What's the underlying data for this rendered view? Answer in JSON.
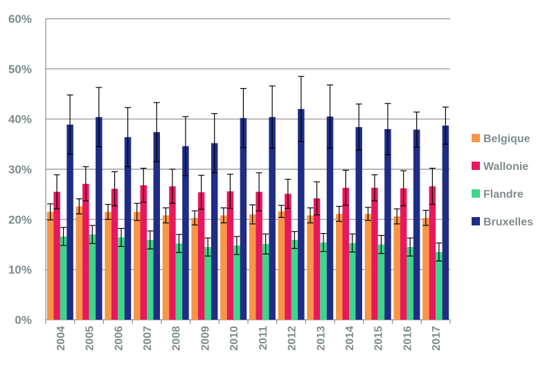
{
  "chart_data": {
    "type": "bar",
    "categories": [
      "2004",
      "2005",
      "2006",
      "2007",
      "2008",
      "2009",
      "2010",
      "2011",
      "2012",
      "2013",
      "2014",
      "2015",
      "2016",
      "2017"
    ],
    "ylim": [
      0,
      60
    ],
    "y_ticks": [
      0,
      10,
      20,
      30,
      40,
      50,
      60
    ],
    "y_tick_labels": [
      "0%",
      "10%",
      "20%",
      "30%",
      "40%",
      "50%",
      "60%"
    ],
    "grid": "horizontal",
    "legend_position": "right",
    "series": [
      {
        "name": "Belgique",
        "color": "#f79646",
        "values": [
          21.5,
          22.6,
          21.5,
          21.5,
          20.8,
          20.3,
          20.8,
          21.0,
          21.6,
          20.8,
          21.1,
          21.1,
          20.6,
          20.3
        ],
        "errors": [
          1.6,
          1.5,
          1.5,
          1.7,
          1.5,
          1.4,
          1.5,
          1.9,
          1.2,
          1.5,
          1.5,
          1.3,
          1.5,
          1.5
        ]
      },
      {
        "name": "Wallonie",
        "color": "#e8185c",
        "values": [
          25.5,
          27.1,
          26.1,
          26.8,
          26.6,
          25.4,
          25.6,
          25.5,
          25.1,
          24.2,
          26.3,
          26.3,
          26.2,
          26.6
        ],
        "errors": [
          3.4,
          3.4,
          3.4,
          3.4,
          3.4,
          3.4,
          3.4,
          3.8,
          2.9,
          3.3,
          3.5,
          2.6,
          3.5,
          3.6
        ]
      },
      {
        "name": "Flandre",
        "color": "#3dd68c",
        "values": [
          16.6,
          17.0,
          16.4,
          15.9,
          15.2,
          14.5,
          14.8,
          15.1,
          15.9,
          15.4,
          15.3,
          15.0,
          14.5,
          13.5
        ],
        "errors": [
          1.8,
          1.8,
          1.8,
          1.8,
          1.8,
          1.8,
          1.8,
          2.0,
          1.7,
          1.8,
          1.8,
          1.8,
          1.8,
          1.8
        ]
      },
      {
        "name": "Bruxelles",
        "color": "#1f2d86",
        "values": [
          38.9,
          40.4,
          36.4,
          37.4,
          34.6,
          35.2,
          40.2,
          40.4,
          42.0,
          40.5,
          38.4,
          38.0,
          37.9,
          38.7
        ],
        "errors": [
          5.9,
          5.9,
          5.9,
          5.9,
          5.9,
          5.9,
          5.9,
          6.2,
          6.5,
          6.3,
          4.6,
          5.1,
          3.5,
          3.7
        ]
      }
    ]
  }
}
